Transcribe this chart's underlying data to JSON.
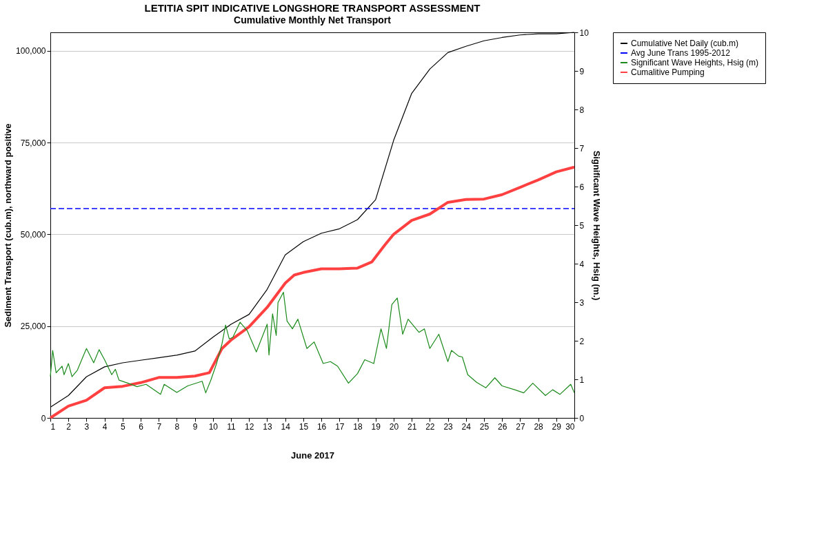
{
  "chart_data": {
    "type": "line",
    "title": "LETITIA SPIT INDICATIVE LONGSHORE TRANSPORT ASSESSMENT",
    "subtitle": "Cumulative Monthly Net Transport",
    "xlabel": "June 2017",
    "ylabel": "Sediment Transport  (cub.m), northward positive",
    "y2label": "Significant  Wave Heights,   Hsig (m.)",
    "xlim": [
      1,
      30
    ],
    "xticks": [
      1,
      2,
      3,
      4,
      5,
      6,
      7,
      8,
      9,
      10,
      11,
      12,
      13,
      14,
      15,
      16,
      17,
      18,
      19,
      20,
      21,
      22,
      23,
      24,
      25,
      26,
      27,
      28,
      29,
      30
    ],
    "ylim": [
      0,
      105000
    ],
    "yticks": [
      0,
      {
        "value": 25000,
        "label": "25,000"
      },
      {
        "value": 50000,
        "label": "50,000"
      },
      {
        "value": 75000,
        "label": "75,000"
      },
      {
        "value": 100000,
        "label": "100,000"
      }
    ],
    "y2lim": [
      0,
      10
    ],
    "y2ticks": [
      0,
      1,
      2,
      3,
      4,
      5,
      6,
      7,
      8,
      9,
      10
    ],
    "grid": "y",
    "legend": "right",
    "marker": "none",
    "series": [
      {
        "name": "Cumulative Net Daily (cub.m)",
        "color": "#000000",
        "x": [
          1,
          2,
          3,
          4,
          5,
          6,
          7,
          8,
          9,
          10,
          11,
          12,
          13,
          14,
          15,
          16,
          17,
          18,
          19,
          20,
          21,
          22,
          23,
          24,
          25,
          26,
          27,
          28,
          29,
          30
        ],
        "values": [
          2900,
          6100,
          11200,
          13900,
          15000,
          15700,
          16400,
          17100,
          18200,
          22000,
          25500,
          28200,
          35000,
          44400,
          48000,
          50300,
          51500,
          54000,
          59400,
          75600,
          88400,
          95000,
          99500,
          101200,
          102700,
          103600,
          104300,
          104600,
          104600,
          105000
        ]
      },
      {
        "name": "Avg June Trans 1995-2012",
        "color": "#0000ff",
        "line_style": "dashed",
        "x": [
          1,
          30
        ],
        "values": [
          57000,
          57000
        ]
      },
      {
        "name": "Significant Wave Heights, Hsig (m)",
        "color": "#1a8a1a",
        "axis": "y2",
        "x": [
          1.0,
          1.13,
          1.32,
          1.65,
          1.76,
          2.0,
          2.2,
          2.5,
          2.8,
          3.0,
          3.4,
          3.7,
          4.0,
          4.4,
          4.6,
          4.8,
          5.3,
          5.8,
          6.3,
          7.1,
          7.3,
          8.0,
          8.6,
          9.4,
          9.6,
          9.9,
          10.2,
          10.5,
          10.7,
          10.9,
          11.1,
          11.5,
          11.9,
          12.4,
          13.0,
          13.1,
          13.3,
          13.5,
          13.6,
          13.9,
          14.1,
          14.4,
          14.7,
          15.2,
          15.6,
          16.1,
          16.5,
          16.9,
          17.5,
          18.0,
          18.4,
          18.9,
          19.3,
          19.6,
          19.9,
          20.2,
          20.5,
          20.8,
          21.4,
          21.7,
          22.0,
          22.5,
          23.0,
          23.2,
          23.6,
          23.8,
          24.1,
          24.6,
          25.1,
          25.6,
          26.0,
          26.7,
          27.2,
          27.7,
          28.4,
          28.8,
          29.2,
          29.8,
          30.0
        ],
        "values": [
          1.07,
          1.75,
          1.17,
          1.34,
          1.12,
          1.41,
          1.07,
          1.24,
          1.58,
          1.8,
          1.43,
          1.77,
          1.51,
          1.12,
          1.26,
          0.98,
          0.9,
          0.81,
          0.87,
          0.61,
          0.87,
          0.66,
          0.83,
          0.95,
          0.65,
          1.0,
          1.41,
          1.92,
          2.41,
          2.05,
          2.09,
          2.48,
          2.26,
          1.71,
          2.43,
          1.63,
          2.7,
          2.14,
          2.99,
          3.26,
          2.51,
          2.31,
          2.56,
          1.8,
          1.97,
          1.41,
          1.46,
          1.34,
          0.9,
          1.15,
          1.51,
          1.41,
          2.31,
          1.8,
          2.94,
          3.11,
          2.17,
          2.56,
          2.22,
          2.31,
          1.8,
          2.17,
          1.46,
          1.75,
          1.6,
          1.58,
          1.12,
          0.92,
          0.78,
          1.04,
          0.83,
          0.73,
          0.65,
          0.9,
          0.58,
          0.73,
          0.61,
          0.87,
          0.65
        ]
      },
      {
        "name": "Cumalitive Pumping",
        "color": "#ff4040",
        "x": [
          1,
          2,
          3,
          4,
          5,
          6,
          7,
          8,
          9,
          9.8,
          10.5,
          11,
          12,
          13,
          14,
          14.5,
          15,
          16,
          17,
          18,
          18.8,
          19.5,
          20,
          21,
          22,
          23,
          24,
          25,
          26,
          27,
          28,
          29,
          30
        ],
        "values": [
          0,
          3200,
          4800,
          8200,
          8600,
          9600,
          11000,
          11000,
          11400,
          12300,
          18900,
          21200,
          24800,
          30100,
          36700,
          38900,
          39600,
          40600,
          40600,
          40800,
          42500,
          47000,
          50000,
          53800,
          55500,
          58700,
          59500,
          59600,
          60800,
          62800,
          64800,
          67000,
          68300
        ]
      }
    ]
  }
}
